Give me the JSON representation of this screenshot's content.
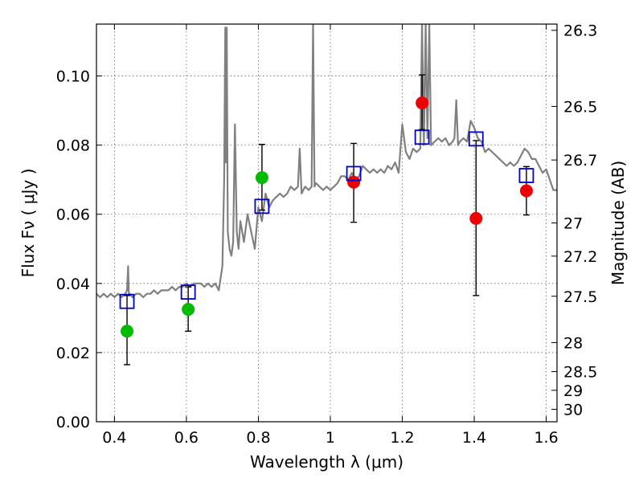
{
  "chart_data": {
    "type": "scatter",
    "xlabel": "Wavelength  λ (μm)",
    "ylabel": "Flux  Fν  ( μJy )",
    "ylabel_right": "Magnitude (AB)",
    "xlim": [
      0.35,
      1.63
    ],
    "ylim": [
      0.0,
      0.115
    ],
    "grid": true,
    "x_ticks": [
      {
        "value": 0.4,
        "label": "0.4"
      },
      {
        "value": 0.6,
        "label": "0.6"
      },
      {
        "value": 0.8,
        "label": "0.8"
      },
      {
        "value": 1.0,
        "label": "1"
      },
      {
        "value": 1.2,
        "label": "1.2"
      },
      {
        "value": 1.4,
        "label": "1.4"
      },
      {
        "value": 1.6,
        "label": "1.6"
      }
    ],
    "y_ticks": [
      {
        "value": 0.0,
        "label": "0.00"
      },
      {
        "value": 0.02,
        "label": "0.02"
      },
      {
        "value": 0.04,
        "label": "0.04"
      },
      {
        "value": 0.06,
        "label": "0.06"
      },
      {
        "value": 0.08,
        "label": "0.08"
      },
      {
        "value": 0.1,
        "label": "0.10"
      }
    ],
    "right_ticks": [
      {
        "flux": 0.1132,
        "label": "26.3"
      },
      {
        "flux": 0.0912,
        "label": "26.5"
      },
      {
        "flux": 0.0757,
        "label": "26.7"
      },
      {
        "flux": 0.0575,
        "label": "27"
      },
      {
        "flux": 0.0479,
        "label": "27.2"
      },
      {
        "flux": 0.0363,
        "label": "27.5"
      },
      {
        "flux": 0.0229,
        "label": "28"
      },
      {
        "flux": 0.0145,
        "label": "28.5"
      },
      {
        "flux": 0.0091,
        "label": "29"
      },
      {
        "flux": 0.0036,
        "label": "30"
      }
    ],
    "colors": {
      "spectrum": "#808080",
      "green": "#00bb00",
      "red": "#ee0000",
      "model": "#0000cc",
      "errorbar": "#000000"
    },
    "spectrum": {
      "x": [
        0.35,
        0.36,
        0.37,
        0.38,
        0.39,
        0.4,
        0.41,
        0.42,
        0.43,
        0.435,
        0.438,
        0.44,
        0.443,
        0.45,
        0.46,
        0.47,
        0.48,
        0.49,
        0.5,
        0.51,
        0.52,
        0.53,
        0.54,
        0.55,
        0.56,
        0.57,
        0.58,
        0.59,
        0.6,
        0.61,
        0.62,
        0.63,
        0.64,
        0.65,
        0.66,
        0.67,
        0.68,
        0.69,
        0.7,
        0.705,
        0.708,
        0.71,
        0.712,
        0.715,
        0.72,
        0.725,
        0.73,
        0.735,
        0.74,
        0.745,
        0.75,
        0.76,
        0.77,
        0.78,
        0.79,
        0.8,
        0.81,
        0.82,
        0.83,
        0.84,
        0.85,
        0.86,
        0.87,
        0.88,
        0.89,
        0.9,
        0.91,
        0.915,
        0.92,
        0.93,
        0.94,
        0.948,
        0.952,
        0.956,
        0.96,
        0.97,
        0.98,
        0.99,
        1.0,
        1.01,
        1.02,
        1.03,
        1.04,
        1.05,
        1.06,
        1.07,
        1.08,
        1.09,
        1.1,
        1.11,
        1.12,
        1.13,
        1.14,
        1.15,
        1.16,
        1.17,
        1.18,
        1.19,
        1.2,
        1.21,
        1.22,
        1.23,
        1.24,
        1.25,
        1.255,
        1.26,
        1.265,
        1.27,
        1.275,
        1.28,
        1.29,
        1.3,
        1.31,
        1.32,
        1.33,
        1.34,
        1.345,
        1.35,
        1.355,
        1.36,
        1.37,
        1.38,
        1.39,
        1.4,
        1.41,
        1.42,
        1.43,
        1.44,
        1.45,
        1.46,
        1.47,
        1.48,
        1.49,
        1.5,
        1.51,
        1.52,
        1.53,
        1.54,
        1.55,
        1.56,
        1.57,
        1.58,
        1.59,
        1.6,
        1.61,
        1.62,
        1.63
      ],
      "y": [
        0.037,
        0.036,
        0.037,
        0.036,
        0.037,
        0.036,
        0.037,
        0.036,
        0.037,
        0.038,
        0.045,
        0.037,
        0.037,
        0.036,
        0.037,
        0.037,
        0.036,
        0.037,
        0.037,
        0.038,
        0.037,
        0.038,
        0.038,
        0.038,
        0.039,
        0.038,
        0.039,
        0.039,
        0.04,
        0.039,
        0.04,
        0.04,
        0.04,
        0.039,
        0.04,
        0.039,
        0.04,
        0.038,
        0.045,
        0.07,
        0.114,
        0.075,
        0.114,
        0.055,
        0.05,
        0.048,
        0.052,
        0.086,
        0.055,
        0.05,
        0.058,
        0.052,
        0.06,
        0.055,
        0.05,
        0.062,
        0.058,
        0.066,
        0.062,
        0.064,
        0.065,
        0.066,
        0.065,
        0.066,
        0.068,
        0.067,
        0.068,
        0.079,
        0.066,
        0.068,
        0.067,
        0.068,
        0.115,
        0.068,
        0.069,
        0.068,
        0.067,
        0.068,
        0.067,
        0.068,
        0.069,
        0.071,
        0.071,
        0.07,
        0.072,
        0.07,
        0.071,
        0.074,
        0.073,
        0.072,
        0.073,
        0.072,
        0.073,
        0.072,
        0.074,
        0.073,
        0.075,
        0.072,
        0.086,
        0.078,
        0.076,
        0.079,
        0.078,
        0.079,
        0.115,
        0.08,
        0.115,
        0.082,
        0.115,
        0.08,
        0.081,
        0.082,
        0.081,
        0.082,
        0.08,
        0.081,
        0.082,
        0.093,
        0.08,
        0.081,
        0.082,
        0.081,
        0.087,
        0.085,
        0.082,
        0.081,
        0.078,
        0.079,
        0.078,
        0.077,
        0.076,
        0.075,
        0.074,
        0.075,
        0.074,
        0.075,
        0.077,
        0.079,
        0.078,
        0.076,
        0.076,
        0.074,
        0.072,
        0.073,
        0.07,
        0.067,
        0.067
      ]
    },
    "green_points": [
      {
        "x": 0.435,
        "y": 0.0262
      },
      {
        "x": 0.605,
        "y": 0.0325
      },
      {
        "x": 0.81,
        "y": 0.0706
      }
    ],
    "red_points": [
      {
        "x": 1.065,
        "y": 0.0693
      },
      {
        "x": 1.255,
        "y": 0.0922
      },
      {
        "x": 1.405,
        "y": 0.0588
      },
      {
        "x": 1.545,
        "y": 0.0668
      }
    ],
    "errorbars": [
      {
        "x": 0.435,
        "low": 0.0165,
        "high": 0.0365
      },
      {
        "x": 0.605,
        "low": 0.0262,
        "high": 0.039
      },
      {
        "x": 0.81,
        "low": 0.0612,
        "high": 0.0802
      },
      {
        "x": 1.065,
        "low": 0.0577,
        "high": 0.0805
      },
      {
        "x": 1.255,
        "low": 0.0845,
        "high": 0.1003
      },
      {
        "x": 1.405,
        "low": 0.0365,
        "high": 0.0813
      },
      {
        "x": 1.545,
        "low": 0.0598,
        "high": 0.0738
      }
    ],
    "model_points": [
      {
        "x": 0.435,
        "y": 0.0348
      },
      {
        "x": 0.605,
        "y": 0.0375
      },
      {
        "x": 0.81,
        "y": 0.0623
      },
      {
        "x": 1.065,
        "y": 0.0718
      },
      {
        "x": 1.255,
        "y": 0.0823
      },
      {
        "x": 1.405,
        "y": 0.0818
      },
      {
        "x": 1.545,
        "y": 0.0712
      }
    ]
  }
}
